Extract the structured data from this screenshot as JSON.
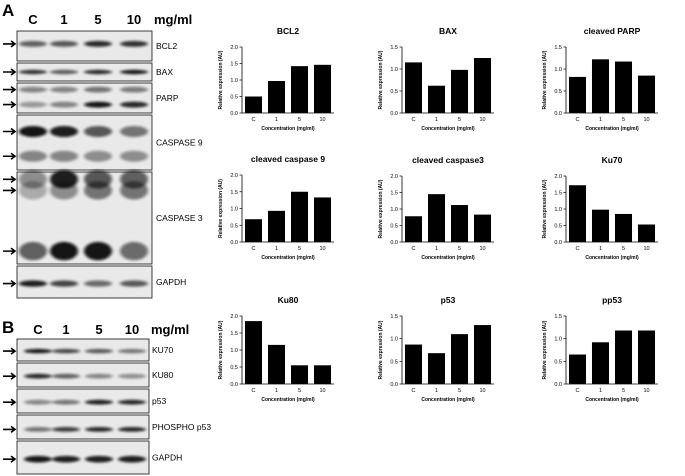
{
  "panel_a": {
    "letter": "A",
    "concentrations": [
      "C",
      "1",
      "5",
      "10"
    ],
    "unit": "mg/ml",
    "blots": [
      {
        "label": "BCL2",
        "bands": [
          {
            "y": 0.43,
            "w": [
              0.55,
              0.6,
              0.85,
              0.8
            ]
          }
        ]
      },
      {
        "label": "BAX",
        "bands": [
          {
            "y": 0.5,
            "w": [
              0.8,
              0.6,
              0.85,
              0.95
            ]
          }
        ]
      },
      {
        "label": "PARP",
        "bands": [
          {
            "y": 0.22,
            "w": [
              0.35,
              0.35,
              0.45,
              0.4
            ]
          },
          {
            "y": 0.72,
            "w": [
              0.25,
              0.35,
              0.95,
              0.85
            ]
          }
        ]
      },
      {
        "label": "CASPASE 9",
        "bands": [
          {
            "y": 0.3,
            "w": [
              0.95,
              0.9,
              0.6,
              0.45
            ]
          },
          {
            "y": 0.75,
            "w": [
              0.35,
              0.35,
              0.3,
              0.3
            ]
          }
        ]
      },
      {
        "label": "CASPASE 3",
        "bands": [
          {
            "y": 0.08,
            "w": [
              0.3,
              0.9,
              0.6,
              0.55
            ]
          },
          {
            "y": 0.2,
            "w": [
              0.15,
              0.3,
              0.45,
              0.45
            ]
          },
          {
            "y": 0.86,
            "w": [
              0.55,
              0.95,
              0.95,
              0.5
            ]
          }
        ]
      },
      {
        "label": "GAPDH",
        "bands": [
          {
            "y": 0.55,
            "w": [
              0.9,
              0.7,
              0.5,
              0.6
            ]
          }
        ]
      }
    ]
  },
  "panel_b": {
    "letter": "B",
    "concentrations": [
      "C",
      "1",
      "5",
      "10"
    ],
    "unit": "mg/ml",
    "blots": [
      {
        "label": "KU70",
        "bands": [
          {
            "y": 0.55,
            "w": [
              0.95,
              0.7,
              0.6,
              0.45
            ]
          }
        ]
      },
      {
        "label": "KU80",
        "bands": [
          {
            "y": 0.55,
            "w": [
              0.85,
              0.55,
              0.35,
              0.3
            ]
          }
        ]
      },
      {
        "label": "p53",
        "bands": [
          {
            "y": 0.55,
            "w": [
              0.35,
              0.45,
              0.9,
              0.85
            ]
          }
        ]
      },
      {
        "label": "PHOSPHO p53",
        "bands": [
          {
            "y": 0.6,
            "w": [
              0.45,
              0.75,
              0.85,
              0.85
            ]
          }
        ]
      },
      {
        "label": "GAPDH",
        "bands": [
          {
            "y": 0.55,
            "w": [
              0.95,
              0.9,
              0.9,
              0.9
            ]
          }
        ]
      }
    ]
  },
  "chart_data": [
    {
      "type": "bar",
      "title": "BCL2",
      "categories": [
        "C",
        "1",
        "5",
        "10"
      ],
      "values": [
        0.5,
        0.97,
        1.42,
        1.46
      ],
      "ylim": [
        0,
        2.0
      ],
      "yticks": [
        "0.0",
        "0.5",
        "1.0",
        "1.5",
        "2.0"
      ],
      "xlabel": "Concentration (mg/ml)",
      "ylabel": "Relative expression (AU)"
    },
    {
      "type": "bar",
      "title": "BAX",
      "categories": [
        "C",
        "1",
        "5",
        "10"
      ],
      "values": [
        1.15,
        0.62,
        0.98,
        1.25
      ],
      "ylim": [
        0,
        1.5
      ],
      "yticks": [
        "0.0",
        "0.5",
        "1.0",
        "1.5"
      ],
      "xlabel": "Concentration (mg/ml)",
      "ylabel": "Relative expression (AU)"
    },
    {
      "type": "bar",
      "title": "cleaved PARP",
      "categories": [
        "C",
        "1",
        "5",
        "10"
      ],
      "values": [
        0.82,
        1.22,
        1.17,
        0.85
      ],
      "ylim": [
        0,
        1.5
      ],
      "yticks": [
        "0.0",
        "0.5",
        "1.0",
        "1.5"
      ],
      "xlabel": "Concentration (mg/ml)",
      "ylabel": "Relative expression (AU)"
    },
    {
      "type": "bar",
      "title": "cleaved caspase 9",
      "categories": [
        "C",
        "1",
        "5",
        "10"
      ],
      "values": [
        0.68,
        0.93,
        1.5,
        1.33
      ],
      "ylim": [
        0,
        2.0
      ],
      "yticks": [
        "0.0",
        "0.5",
        "1.0",
        "1.5",
        "2.0"
      ],
      "xlabel": "Concentration (mg/ml)",
      "ylabel": "Relative expression (AU)"
    },
    {
      "type": "bar",
      "title": "cleaved caspase3",
      "categories": [
        "C",
        "1",
        "5",
        "10"
      ],
      "values": [
        0.78,
        1.45,
        1.12,
        0.83
      ],
      "ylim": [
        0,
        2.0
      ],
      "yticks": [
        "0.0",
        "0.5",
        "1.0",
        "1.5",
        "2.0"
      ],
      "xlabel": "Concentration (mg/ml)",
      "ylabel": "Relative expression (AU)"
    },
    {
      "type": "bar",
      "title": "Ku70",
      "categories": [
        "C",
        "1",
        "5",
        "10"
      ],
      "values": [
        1.72,
        0.98,
        0.85,
        0.53
      ],
      "ylim": [
        0,
        2.0
      ],
      "yticks": [
        "0.0",
        "0.5",
        "1.0",
        "1.5",
        "2.0"
      ],
      "xlabel": "Concentration (mg/ml)",
      "ylabel": "Relative expression (AU)"
    },
    {
      "type": "bar",
      "title": "Ku80",
      "categories": [
        "C",
        "1",
        "5",
        "10"
      ],
      "values": [
        1.85,
        1.15,
        0.55,
        0.55
      ],
      "ylim": [
        0,
        2.0
      ],
      "yticks": [
        "0.0",
        "0.5",
        "1.0",
        "1.5",
        "2.0"
      ],
      "xlabel": "Concentration (mg/ml)",
      "ylabel": "Relative expression (AU)"
    },
    {
      "type": "bar",
      "title": "p53",
      "categories": [
        "C",
        "1",
        "5",
        "10"
      ],
      "values": [
        0.87,
        0.68,
        1.1,
        1.3
      ],
      "ylim": [
        0,
        1.5
      ],
      "yticks": [
        "0.0",
        "0.5",
        "1.0",
        "1.5"
      ],
      "xlabel": "Concentration (mg/ml)",
      "ylabel": "Relative expression (AU)"
    },
    {
      "type": "bar",
      "title": "pp53",
      "categories": [
        "C",
        "1",
        "5",
        "10"
      ],
      "values": [
        0.65,
        0.92,
        1.18,
        1.18
      ],
      "ylim": [
        0,
        1.5
      ],
      "yticks": [
        "0.0",
        "0.5",
        "1.0",
        "1.5"
      ],
      "xlabel": "Concentration (mg/ml)",
      "ylabel": "Relative expression (AU)"
    }
  ]
}
